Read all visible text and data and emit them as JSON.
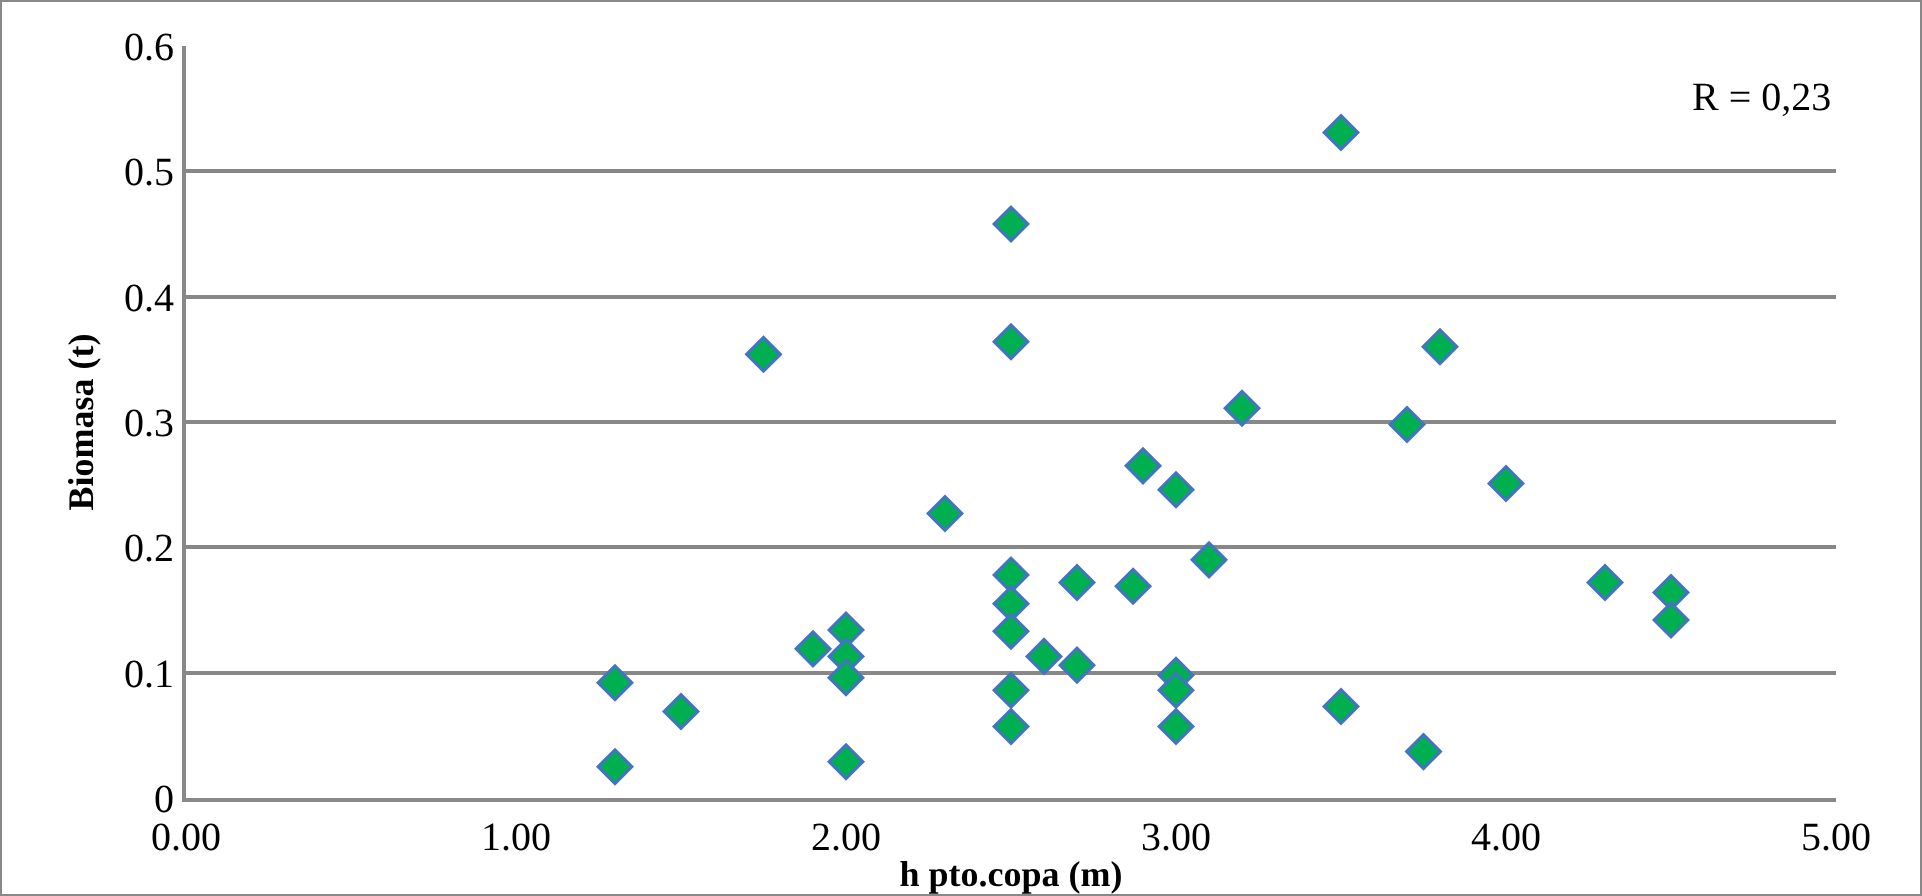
{
  "chart_data": {
    "type": "scatter",
    "xlabel": "h pto.copa (m)",
    "ylabel": "Biomasa (t)",
    "annotations": [
      "R = 0,23"
    ],
    "x": [
      1.3,
      1.3,
      1.5,
      1.75,
      1.9,
      2.0,
      2.0,
      2.0,
      2.0,
      2.3,
      2.5,
      2.5,
      2.5,
      2.5,
      2.5,
      2.5,
      2.5,
      2.6,
      2.7,
      2.7,
      2.87,
      2.9,
      3.0,
      3.0,
      3.0,
      3.0,
      3.1,
      3.2,
      3.5,
      3.5,
      3.7,
      3.75,
      3.8,
      4.0,
      4.3,
      4.5,
      4.5
    ],
    "series": [
      {
        "color": "#00b050",
        "values": [
          0.092,
          0.025,
          0.069,
          0.354,
          0.119,
          0.134,
          0.113,
          0.096,
          0.029,
          0.227,
          0.458,
          0.364,
          0.178,
          0.155,
          0.133,
          0.086,
          0.057,
          0.113,
          0.172,
          0.106,
          0.169,
          0.265,
          0.246,
          0.098,
          0.086,
          0.057,
          0.19,
          0.311,
          0.531,
          0.073,
          0.298,
          0.037,
          0.36,
          0.251,
          0.172,
          0.164,
          0.142
        ]
      }
    ],
    "xlim": [
      0,
      5
    ],
    "xticks": [
      {
        "value": 0,
        "label": "0.00"
      },
      {
        "value": 1,
        "label": "1.00"
      },
      {
        "value": 2,
        "label": "2.00"
      },
      {
        "value": 3,
        "label": "3.00"
      },
      {
        "value": 4,
        "label": "4.00"
      },
      {
        "value": 5,
        "label": "5.00"
      }
    ],
    "ylim": [
      0,
      0.6
    ],
    "yticks": [
      0,
      0.1,
      0.2,
      0.3,
      0.4,
      0.5,
      0.6
    ],
    "grid": "y",
    "marker": "diamond"
  }
}
